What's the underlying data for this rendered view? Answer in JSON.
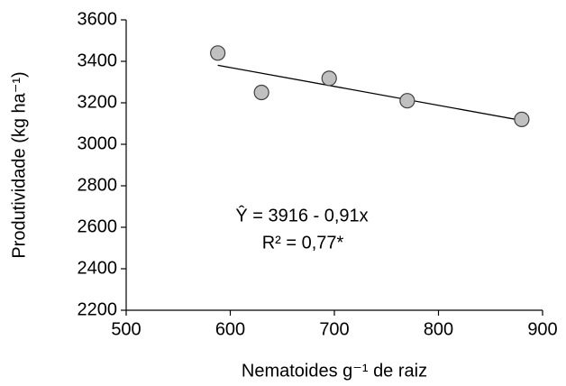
{
  "chart_data": {
    "type": "scatter",
    "x_label": "Nematoides g⁻¹ de raiz",
    "y_label": "Produtividade (kg ha⁻¹)",
    "x": [
      588,
      630,
      695,
      770,
      880
    ],
    "values": [
      3440,
      3250,
      3318,
      3210,
      3120
    ],
    "color": "#c0c0c0",
    "trend": {
      "x": [
        588,
        880
      ],
      "values": [
        3381,
        3115
      ],
      "color": "#000000"
    },
    "annotations": [
      "Ŷ = 3916 - 0,91x",
      "R² = 0,77*"
    ],
    "xlim": [
      500,
      900
    ],
    "xticks": [
      500,
      600,
      700,
      800,
      900
    ],
    "ylim": [
      2200,
      3600
    ],
    "yticks": [
      2200,
      2400,
      2600,
      2800,
      3000,
      3200,
      3400,
      3600
    ],
    "grid": false
  }
}
